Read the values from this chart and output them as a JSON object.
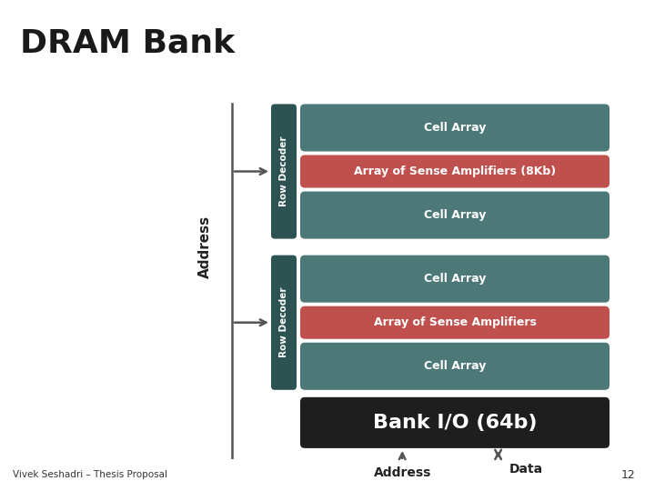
{
  "title": "DRAM Bank",
  "title_fontsize": 26,
  "header_bg": "#d8d8d8",
  "content_bg": "#ffffff",
  "footer_bg": "#d0d0d0",
  "footer_text": "Vivek Seshadri – Thesis Proposal",
  "page_number": "12",
  "teal_color": "#4d7878",
  "red_color": "#c0504d",
  "row_decoder_color": "#2d5252",
  "bank_io_color": "#1e1e1e",
  "white": "#ffffff",
  "top_group": {
    "blocks": [
      {
        "label": "Cell Array",
        "color": "#4d7878"
      },
      {
        "label": "Array of Sense Amplifiers (8Kb)",
        "color": "#c0504d"
      },
      {
        "label": "Cell Array",
        "color": "#4d7878"
      }
    ],
    "row_decoder_label": "Row Decoder"
  },
  "bottom_group": {
    "blocks": [
      {
        "label": "Cell Array",
        "color": "#4d7878"
      },
      {
        "label": "Array of Sense Amplifiers",
        "color": "#c0504d"
      },
      {
        "label": "Cell Array",
        "color": "#4d7878"
      }
    ],
    "row_decoder_label": "Row Decoder"
  },
  "bank_io_label": "Bank I/O (64b)",
  "address_label_side": "Address",
  "address_label_bottom": "Address",
  "data_label": "Data"
}
